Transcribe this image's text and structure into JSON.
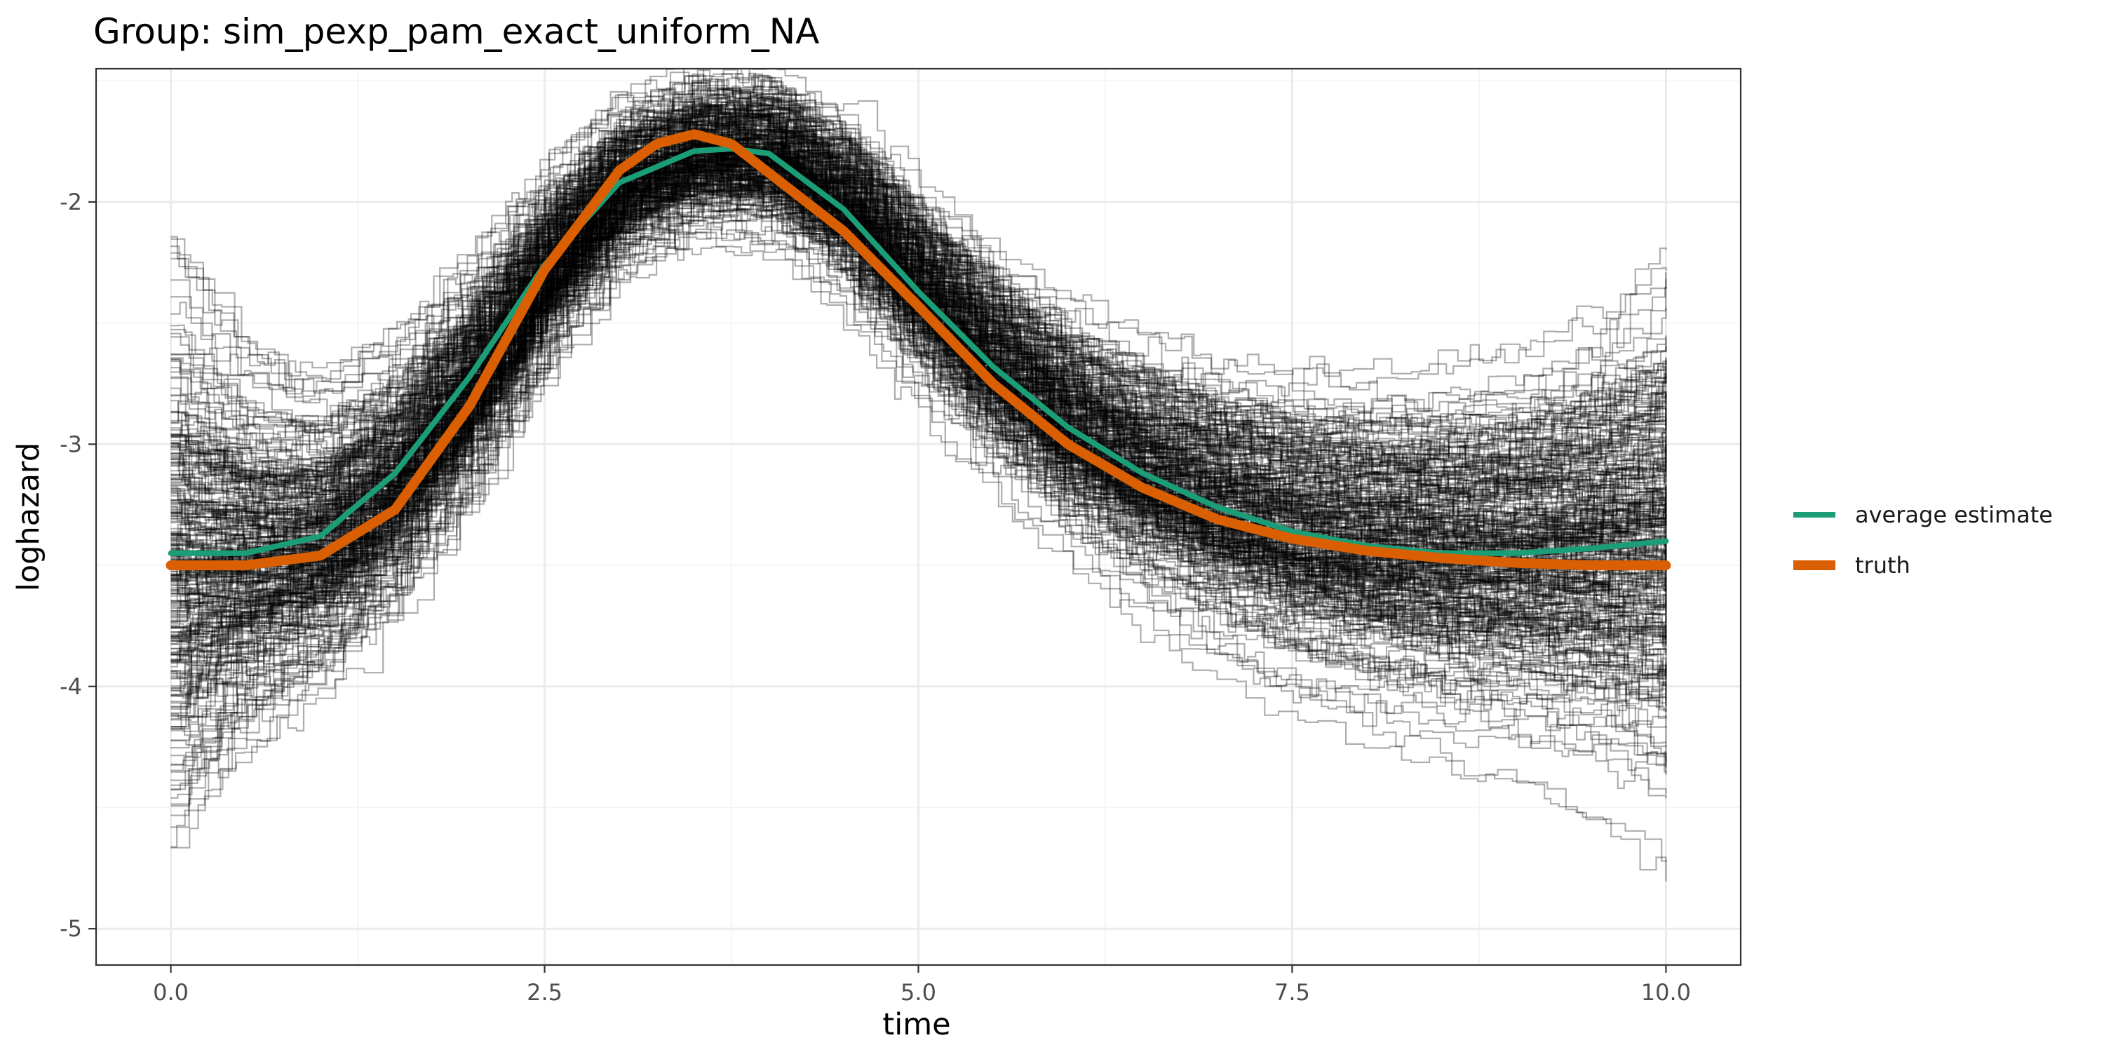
{
  "chart_data": {
    "type": "line",
    "title": "Group: sim_pexp_pam_exact_uniform_NA",
    "xlabel": "time",
    "ylabel": "loghazard",
    "xlim": [
      -0.5,
      10.5
    ],
    "ylim": [
      -5.15,
      -1.45
    ],
    "x_ticks": [
      {
        "value": 0.0,
        "label": "0.0"
      },
      {
        "value": 2.5,
        "label": "2.5"
      },
      {
        "value": 5.0,
        "label": "5.0"
      },
      {
        "value": 7.5,
        "label": "7.5"
      },
      {
        "value": 10.0,
        "label": "10.0"
      }
    ],
    "y_ticks": [
      {
        "value": -2,
        "label": "-2"
      },
      {
        "value": -3,
        "label": "-3"
      },
      {
        "value": -4,
        "label": "-4"
      },
      {
        "value": -5,
        "label": "-5"
      }
    ],
    "grid": true,
    "legend_position": "right",
    "series": [
      {
        "name": "average estimate",
        "color": "#1b9e77",
        "x": [
          0,
          0.5,
          1.0,
          1.5,
          2.0,
          2.5,
          3.0,
          3.5,
          3.75,
          4.0,
          4.5,
          5.0,
          5.5,
          6.0,
          6.5,
          7.0,
          7.5,
          8.0,
          8.5,
          9.0,
          9.5,
          10.0
        ],
        "y": [
          -3.45,
          -3.45,
          -3.38,
          -3.12,
          -2.72,
          -2.26,
          -1.92,
          -1.79,
          -1.78,
          -1.8,
          -2.03,
          -2.37,
          -2.68,
          -2.93,
          -3.12,
          -3.26,
          -3.36,
          -3.42,
          -3.45,
          -3.45,
          -3.43,
          -3.4
        ]
      },
      {
        "name": "truth",
        "color": "#d95f02",
        "x": [
          0,
          0.5,
          1.0,
          1.5,
          2.0,
          2.5,
          3.0,
          3.25,
          3.5,
          3.75,
          4.0,
          4.5,
          5.0,
          5.5,
          6.0,
          6.5,
          7.0,
          7.5,
          8.0,
          8.5,
          9.0,
          9.5,
          10.0
        ],
        "y": [
          -3.5,
          -3.5,
          -3.46,
          -3.27,
          -2.84,
          -2.28,
          -1.87,
          -1.76,
          -1.72,
          -1.76,
          -1.88,
          -2.12,
          -2.43,
          -2.75,
          -3.0,
          -3.18,
          -3.31,
          -3.39,
          -3.44,
          -3.47,
          -3.49,
          -3.5,
          -3.5
        ]
      }
    ],
    "simulation_replicates": {
      "color": "#000000",
      "description_count": 300,
      "band": {
        "x": [
          0,
          0.5,
          1.0,
          1.5,
          2.0,
          2.5,
          3.0,
          3.5,
          4.0,
          4.5,
          5.0,
          5.5,
          6.0,
          6.5,
          7.0,
          7.5,
          8.0,
          8.5,
          9.0,
          9.5,
          10.0
        ],
        "center": [
          -3.45,
          -3.45,
          -3.38,
          -3.12,
          -2.72,
          -2.26,
          -1.92,
          -1.79,
          -1.8,
          -2.03,
          -2.37,
          -2.68,
          -2.93,
          -3.12,
          -3.26,
          -3.36,
          -3.42,
          -3.45,
          -3.45,
          -3.43,
          -3.4
        ],
        "spread": [
          0.5,
          0.34,
          0.28,
          0.26,
          0.24,
          0.2,
          0.18,
          0.17,
          0.18,
          0.2,
          0.22,
          0.24,
          0.26,
          0.28,
          0.3,
          0.32,
          0.33,
          0.34,
          0.36,
          0.4,
          0.48
        ]
      }
    }
  }
}
